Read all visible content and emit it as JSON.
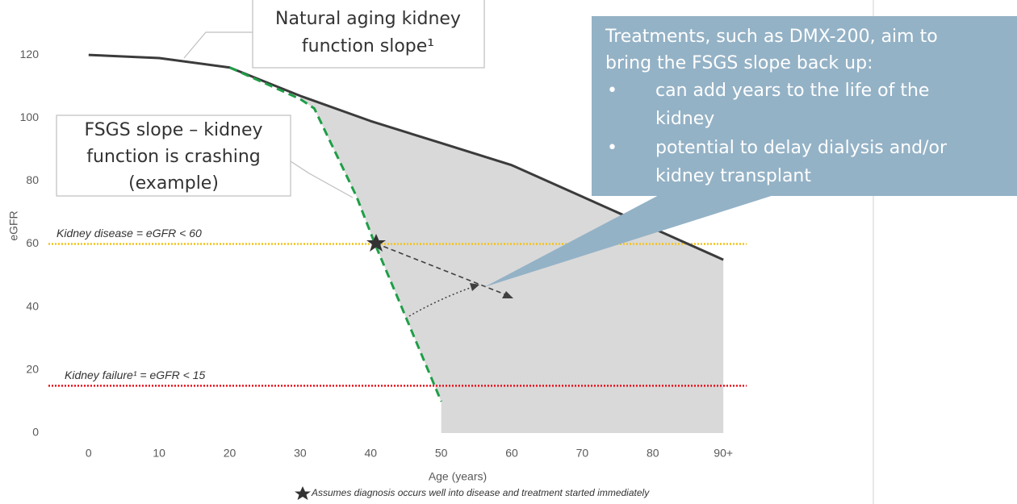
{
  "chart_data": {
    "type": "line",
    "x_label": "Age (years)",
    "y_label": "eGFR",
    "xlim": [
      -5.7,
      93.3
    ],
    "xticks": [
      0,
      10,
      20,
      30,
      40,
      50,
      60,
      70,
      80,
      {
        "value": 90,
        "label": "90+"
      }
    ],
    "ylim": [
      0,
      130
    ],
    "yticks": [
      0,
      20,
      40,
      60,
      80,
      100,
      120
    ],
    "series": [
      {
        "color": "#3b3b3b",
        "style": "solid",
        "x": [
          0,
          10,
          20,
          30,
          40,
          50,
          60,
          70,
          80,
          90
        ],
        "values": [
          120,
          119,
          116,
          107,
          99,
          92,
          85,
          75,
          65,
          55
        ]
      },
      {
        "color": "#1f9e48",
        "style": "dashed",
        "x": [
          20,
          30,
          32,
          38,
          40.6,
          44,
          50
        ],
        "values": [
          116,
          106,
          103,
          75,
          60,
          42,
          10
        ]
      }
    ],
    "area_color": "#d9d9d9",
    "thresholds": [
      {
        "value": 60,
        "label": "Kidney disease = eGFR < 60",
        "color": "#f2c218"
      },
      {
        "value": 15,
        "label": "Kidney failure¹ = eGFR < 15",
        "color": "#e8101a"
      }
    ],
    "annotations": {
      "natural": [
        "Natural aging kidney",
        "function slope¹"
      ],
      "fsgs": [
        "FSGS slope – kidney",
        "function is crashing",
        "(example)"
      ],
      "treatment": [
        "Treatments, such as DMX-200, aim to",
        "bring the FSGS slope back up:"
      ],
      "bullets": [
        [
          "can add years to the life of the",
          "kidney"
        ],
        [
          "potential to delay dialysis and/or",
          "kidney transplant"
        ]
      ],
      "footnote": "Assumes diagnosis occurs well into disease and treatment started immediately"
    }
  }
}
